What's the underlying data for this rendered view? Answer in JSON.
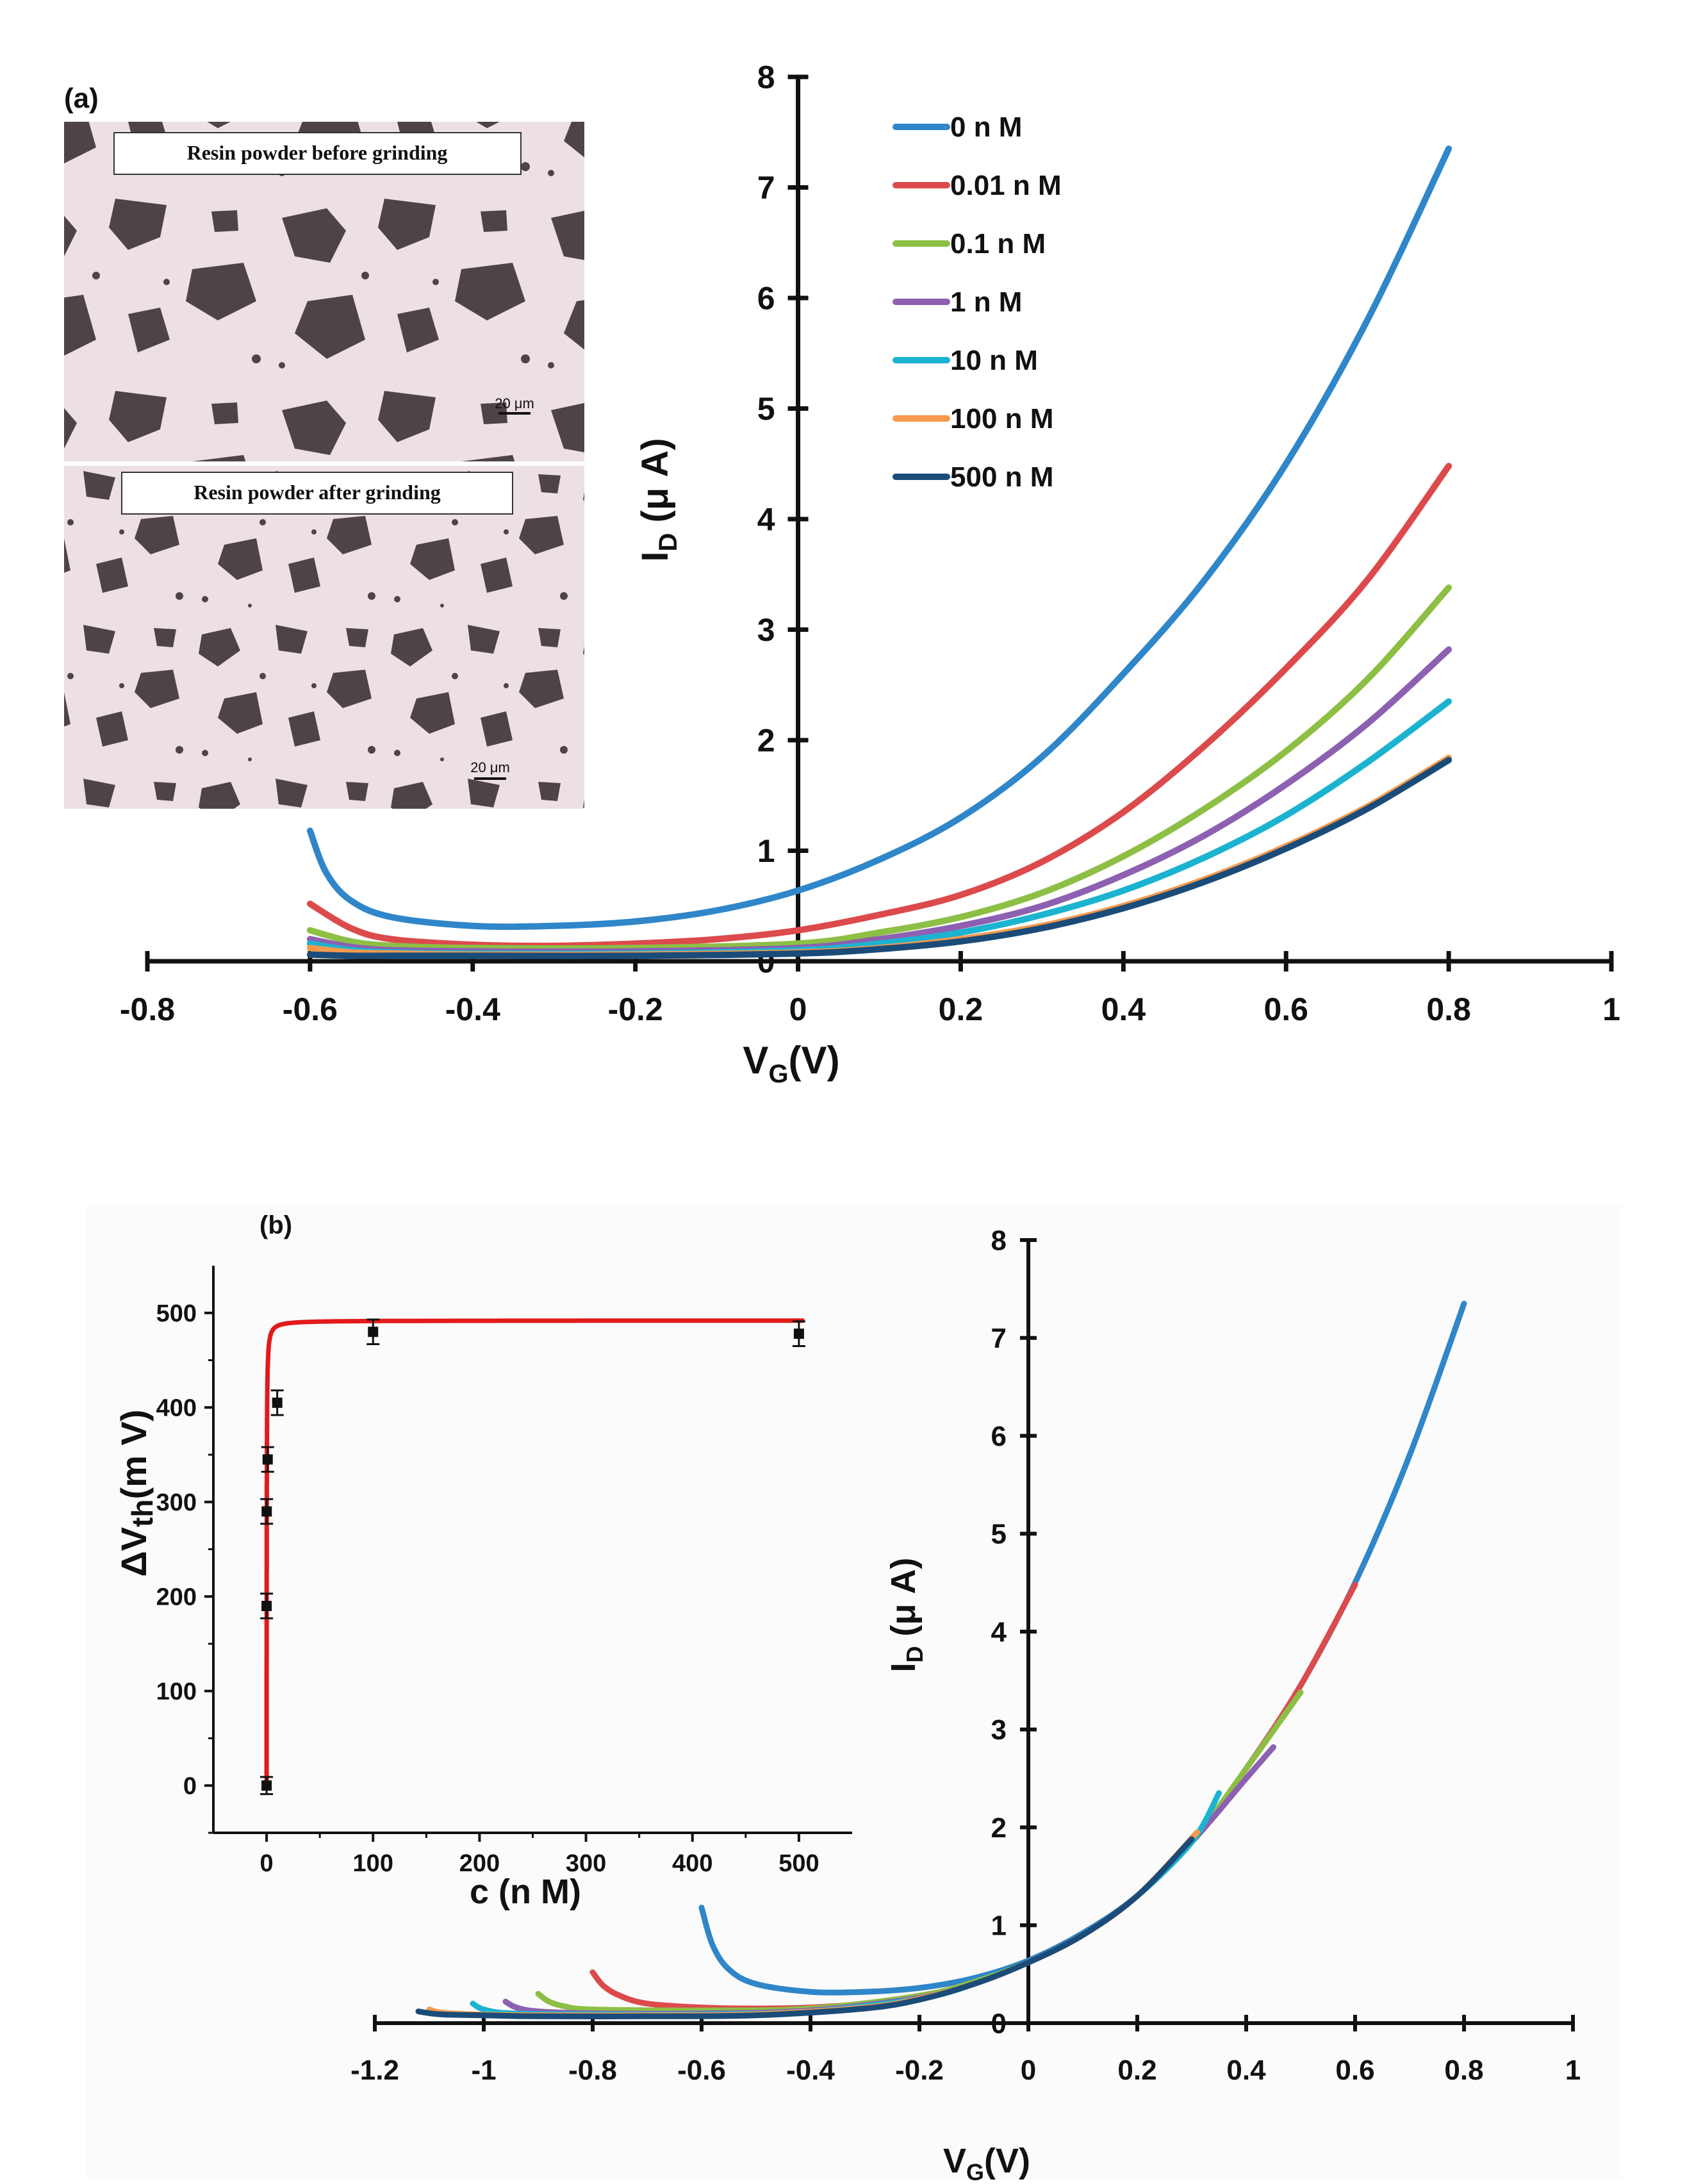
{
  "colors": {
    "series": [
      "#2f86c9",
      "#dc4a4c",
      "#8dbf45",
      "#8d60b1",
      "#1cb3d1",
      "#f59a4c",
      "#1b4c79"
    ],
    "fit_curve": "#e21a1a",
    "axis": "#111111",
    "micro_bg": "#ece0e2",
    "micro_particle": "#4e4446"
  },
  "panel_a": {
    "label": "(a)",
    "micrographs": [
      {
        "caption": "Resin powder before grinding",
        "scale_bar": "20 μm"
      },
      {
        "caption": "Resin powder after grinding",
        "scale_bar": "20 μm"
      }
    ]
  },
  "panel_b": {
    "label": "(b)"
  },
  "chart_data": [
    {
      "id": "a-main",
      "type": "line",
      "title": "",
      "xlabel": "VG(V)",
      "ylabel": "ID (μ A)",
      "xlim": [
        -0.8,
        1.0
      ],
      "ylim": [
        0,
        8
      ],
      "xticks": [
        -0.8,
        -0.6,
        -0.4,
        -0.2,
        0,
        0.2,
        0.4,
        0.6,
        0.8,
        1
      ],
      "xtick_labels": [
        "-0.8",
        "-0.6",
        "-0.4",
        "-0.2",
        "0",
        "0.2",
        "0.4",
        "0.6",
        "0.8",
        "1"
      ],
      "yticks": [
        0,
        1,
        2,
        3,
        4,
        5,
        6,
        7,
        8
      ],
      "ytick_labels": [
        "0",
        "1",
        "2",
        "3",
        "4",
        "5",
        "6",
        "7",
        "8"
      ],
      "legend_position": "top-right",
      "series": [
        {
          "name": "0 n M",
          "x": [
            -0.6,
            -0.58,
            -0.55,
            -0.5,
            -0.4,
            -0.3,
            -0.2,
            -0.1,
            0,
            0.1,
            0.2,
            0.3,
            0.4,
            0.5,
            0.6,
            0.7,
            0.8
          ],
          "y": [
            1.18,
            0.8,
            0.55,
            0.4,
            0.32,
            0.32,
            0.36,
            0.46,
            0.64,
            0.92,
            1.3,
            1.85,
            2.6,
            3.45,
            4.5,
            5.8,
            7.35
          ]
        },
        {
          "name": "0.01 n M",
          "x": [
            -0.6,
            -0.55,
            -0.5,
            -0.4,
            -0.3,
            -0.2,
            -0.1,
            0,
            0.1,
            0.2,
            0.3,
            0.4,
            0.5,
            0.6,
            0.7,
            0.8
          ],
          "y": [
            0.52,
            0.3,
            0.2,
            0.15,
            0.14,
            0.16,
            0.2,
            0.28,
            0.42,
            0.6,
            0.9,
            1.35,
            1.95,
            2.65,
            3.45,
            4.48
          ]
        },
        {
          "name": "0.1 n M",
          "x": [
            -0.6,
            -0.55,
            -0.5,
            -0.4,
            -0.2,
            0,
            0.1,
            0.2,
            0.3,
            0.4,
            0.5,
            0.6,
            0.7,
            0.8
          ],
          "y": [
            0.28,
            0.18,
            0.14,
            0.12,
            0.12,
            0.16,
            0.26,
            0.4,
            0.62,
            0.95,
            1.38,
            1.9,
            2.55,
            3.38
          ]
        },
        {
          "name": "1 n M",
          "x": [
            -0.6,
            -0.55,
            -0.5,
            -0.4,
            -0.2,
            0,
            0.1,
            0.2,
            0.3,
            0.4,
            0.5,
            0.6,
            0.7,
            0.8
          ],
          "y": [
            0.2,
            0.13,
            0.1,
            0.09,
            0.09,
            0.12,
            0.2,
            0.32,
            0.5,
            0.78,
            1.14,
            1.6,
            2.15,
            2.82
          ]
        },
        {
          "name": "10 n M",
          "x": [
            -0.6,
            -0.55,
            -0.5,
            -0.4,
            -0.2,
            0,
            0.1,
            0.2,
            0.3,
            0.4,
            0.5,
            0.6,
            0.7,
            0.8
          ],
          "y": [
            0.16,
            0.1,
            0.08,
            0.07,
            0.07,
            0.1,
            0.16,
            0.26,
            0.42,
            0.64,
            0.94,
            1.32,
            1.8,
            2.35
          ]
        },
        {
          "name": "100 n M",
          "x": [
            -0.6,
            -0.55,
            -0.5,
            -0.4,
            -0.2,
            0,
            0.1,
            0.2,
            0.3,
            0.4,
            0.5,
            0.6,
            0.7,
            0.8
          ],
          "y": [
            0.12,
            0.08,
            0.07,
            0.06,
            0.06,
            0.08,
            0.12,
            0.2,
            0.32,
            0.5,
            0.74,
            1.04,
            1.4,
            1.84
          ]
        },
        {
          "name": "500 n M",
          "x": [
            -0.6,
            -0.55,
            -0.5,
            -0.4,
            -0.2,
            0,
            0.1,
            0.2,
            0.3,
            0.4,
            0.5,
            0.6,
            0.7,
            0.8
          ],
          "y": [
            0.06,
            0.05,
            0.05,
            0.05,
            0.05,
            0.07,
            0.11,
            0.18,
            0.3,
            0.48,
            0.72,
            1.02,
            1.38,
            1.82
          ]
        }
      ]
    },
    {
      "id": "b-main",
      "type": "line",
      "title": "",
      "xlabel": "VG(V)",
      "ylabel": "ID (μ A)",
      "xlim": [
        -1.2,
        1.0
      ],
      "ylim": [
        0,
        8
      ],
      "xticks": [
        -1.2,
        -1,
        -0.8,
        -0.6,
        -0.4,
        -0.2,
        0,
        0.2,
        0.4,
        0.6,
        0.8,
        1
      ],
      "xtick_labels": [
        "-1.2",
        "-1",
        "-0.8",
        "-0.6",
        "-0.4",
        "-0.2",
        "0",
        "0.2",
        "0.4",
        "0.6",
        "0.8",
        "1"
      ],
      "yticks": [
        0,
        1,
        2,
        3,
        4,
        5,
        6,
        7,
        8
      ],
      "ytick_labels": [
        "0",
        "1",
        "2",
        "3",
        "4",
        "5",
        "6",
        "7",
        "8"
      ],
      "series": [
        {
          "name": "0 n M",
          "x": [
            -0.6,
            -0.58,
            -0.55,
            -0.5,
            -0.4,
            -0.3,
            -0.2,
            -0.1,
            0,
            0.1,
            0.2,
            0.3,
            0.4,
            0.5,
            0.6,
            0.7,
            0.8
          ],
          "y": [
            1.18,
            0.8,
            0.55,
            0.4,
            0.32,
            0.32,
            0.36,
            0.46,
            0.64,
            0.92,
            1.3,
            1.85,
            2.6,
            3.45,
            4.5,
            5.8,
            7.35
          ]
        },
        {
          "name": "0.01 n M",
          "x": [
            -0.8,
            -0.78,
            -0.75,
            -0.7,
            -0.6,
            -0.5,
            -0.4,
            -0.3,
            -0.2,
            -0.1,
            0,
            0.1,
            0.2,
            0.3,
            0.4,
            0.5,
            0.6
          ],
          "y": [
            0.52,
            0.38,
            0.28,
            0.2,
            0.16,
            0.15,
            0.16,
            0.2,
            0.28,
            0.4,
            0.62,
            0.9,
            1.3,
            1.85,
            2.6,
            3.45,
            4.48
          ]
        },
        {
          "name": "0.1 n M",
          "x": [
            -0.9,
            -0.88,
            -0.85,
            -0.8,
            -0.6,
            -0.4,
            -0.2,
            -0.1,
            0,
            0.1,
            0.2,
            0.3,
            0.4,
            0.5
          ],
          "y": [
            0.3,
            0.22,
            0.17,
            0.14,
            0.13,
            0.15,
            0.28,
            0.42,
            0.62,
            0.9,
            1.3,
            1.85,
            2.6,
            3.38
          ]
        },
        {
          "name": "1 n M",
          "x": [
            -0.96,
            -0.94,
            -0.9,
            -0.8,
            -0.6,
            -0.4,
            -0.2,
            -0.1,
            0,
            0.1,
            0.2,
            0.3,
            0.4,
            0.45
          ],
          "y": [
            0.22,
            0.16,
            0.12,
            0.1,
            0.1,
            0.13,
            0.26,
            0.4,
            0.62,
            0.9,
            1.3,
            1.85,
            2.5,
            2.82
          ]
        },
        {
          "name": "10 n M",
          "x": [
            -1.02,
            -1.0,
            -0.95,
            -0.8,
            -0.6,
            -0.4,
            -0.2,
            -0.1,
            0,
            0.1,
            0.2,
            0.3,
            0.35
          ],
          "y": [
            0.2,
            0.14,
            0.1,
            0.09,
            0.09,
            0.12,
            0.25,
            0.4,
            0.62,
            0.9,
            1.3,
            1.85,
            2.35
          ]
        },
        {
          "name": "100 n M",
          "x": [
            -1.1,
            -1.08,
            -1.02,
            -0.9,
            -0.7,
            -0.5,
            -0.3,
            -0.2,
            -0.1,
            0,
            0.1,
            0.2,
            0.31
          ],
          "y": [
            0.14,
            0.11,
            0.09,
            0.08,
            0.08,
            0.09,
            0.16,
            0.25,
            0.4,
            0.62,
            0.9,
            1.3,
            1.95
          ]
        },
        {
          "name": "500 n M",
          "x": [
            -1.12,
            -1.08,
            -1.0,
            -0.9,
            -0.7,
            -0.5,
            -0.3,
            -0.2,
            -0.1,
            0,
            0.1,
            0.2,
            0.3
          ],
          "y": [
            0.12,
            0.09,
            0.08,
            0.07,
            0.07,
            0.08,
            0.15,
            0.24,
            0.4,
            0.62,
            0.9,
            1.3,
            1.88
          ]
        }
      ]
    },
    {
      "id": "b-inset",
      "type": "scatter",
      "title": "",
      "xlabel": "c (n M)",
      "ylabel": "ΔVth(m V)",
      "xlim": [
        -50,
        550
      ],
      "ylim": [
        -50,
        550
      ],
      "xticks": [
        0,
        100,
        200,
        300,
        400,
        500
      ],
      "xtick_labels": [
        "0",
        "100",
        "200",
        "300",
        "400",
        "500"
      ],
      "yticks": [
        0,
        100,
        200,
        300,
        400,
        500
      ],
      "ytick_labels": [
        "0",
        "100",
        "200",
        "300",
        "400",
        "500"
      ],
      "points": [
        {
          "x": 0,
          "y": 0,
          "err": 5
        },
        {
          "x": 0.01,
          "y": 190,
          "err": 9
        },
        {
          "x": 0.1,
          "y": 290,
          "err": 9
        },
        {
          "x": 1,
          "y": 345,
          "err": 9
        },
        {
          "x": 10,
          "y": 405,
          "err": 9
        },
        {
          "x": 100,
          "y": 480,
          "err": 9
        },
        {
          "x": 500,
          "y": 478,
          "err": 9
        }
      ],
      "fit": {
        "model": "langmuir",
        "vmax": 492,
        "kd": 0.12
      }
    }
  ]
}
